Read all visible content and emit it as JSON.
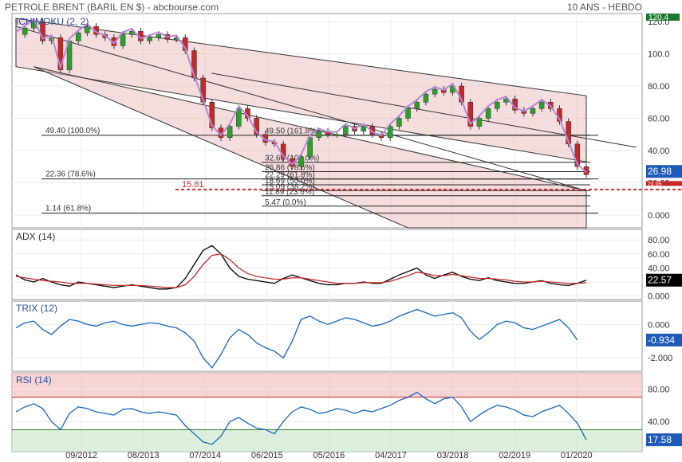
{
  "header": {
    "title": "PETROLE BRENT (BARIL EN $) - abcbourse.com",
    "period": "10 ANS - HEBDO"
  },
  "colors": {
    "price_up": "#2ca02c",
    "price_down": "#c62828",
    "ichimoku_line": "#b388d8",
    "channel_fill": "#e8b4b4",
    "adx_line": "#000000",
    "adx_signal": "#c62828",
    "trix_line": "#1565c0",
    "rsi_line": "#1565c0",
    "rsi_overbought": "#f4c2c2",
    "rsi_oversold": "#cde8cd"
  },
  "x_labels": [
    "09/2012",
    "08/2013",
    "07/2014",
    "06/2015",
    "05/2016",
    "04/2017",
    "03/2018",
    "02/2019",
    "01/2020"
  ],
  "chart_data": [
    {
      "type": "line",
      "panel": "price",
      "title": "ICHIMOKU (2, 2)",
      "ylabels": [
        "0.000",
        "20.00",
        "40.00",
        "60.00",
        "80.00",
        "100.0",
        "120.0"
      ],
      "ylim": [
        -8,
        125
      ],
      "top_value_badge": "120.4",
      "last_value": "26.98",
      "last_value_color": "#1e5bb8",
      "red_badge_value": "24.05",
      "support_label": "15.81",
      "support_value": 15.81,
      "fib_left": [
        {
          "label": "49.40  (100.0%)",
          "value": 49.4
        },
        {
          "label": "22.36  (78.6%)",
          "value": 22.36
        },
        {
          "label": "1.14  (61.8%)",
          "value": 1.14
        }
      ],
      "fib_mid": [
        {
          "label": "49.50  (161.8%)",
          "value": 49.5
        },
        {
          "label": "32.68  (100.0%)",
          "value": 32.68
        },
        {
          "label": "26.86  (78.6%)",
          "value": 26.86
        },
        {
          "label": "22.29  (61.8%)",
          "value": 22.29
        },
        {
          "label": "18.69  (50.0%)",
          "value": 18.69
        },
        {
          "label": "15.09  (38.2%)",
          "value": 15.09
        },
        {
          "label": "11.89  (23.6%)",
          "value": 11.89
        },
        {
          "label": "5.47  (0.0%)",
          "value": 5.47
        }
      ],
      "series": [
        {
          "values": [
            112,
            116,
            120,
            108,
            110,
            90,
            108,
            113,
            117,
            112,
            110,
            105,
            112,
            114,
            108,
            110,
            112,
            109,
            110,
            102,
            85,
            70,
            54,
            48,
            55,
            66,
            60,
            50,
            45,
            44,
            35,
            30,
            36,
            48,
            52,
            50,
            50,
            55,
            52,
            55,
            50,
            48,
            55,
            60,
            66,
            70,
            75,
            78,
            76,
            80,
            70,
            55,
            60,
            66,
            70,
            72,
            65,
            63,
            66,
            70,
            66,
            58,
            44,
            30,
            25
          ]
        }
      ]
    },
    {
      "type": "line",
      "panel": "adx",
      "title": "ADX (14)",
      "ylabels": [
        "0.000",
        "20.00",
        "40.00",
        "60.00",
        "80.00"
      ],
      "ylim": [
        -5,
        95
      ],
      "last_value": "22.57",
      "series": [
        {
          "values": [
            30,
            23,
            20,
            25,
            20,
            16,
            14,
            20,
            18,
            16,
            14,
            12,
            14,
            16,
            14,
            12,
            10,
            10,
            12,
            25,
            45,
            65,
            72,
            60,
            40,
            28,
            24,
            22,
            20,
            18,
            25,
            30,
            26,
            22,
            18,
            16,
            16,
            18,
            18,
            20,
            18,
            18,
            24,
            30,
            35,
            40,
            30,
            25,
            30,
            34,
            28,
            24,
            22,
            26,
            22,
            20,
            18,
            18,
            20,
            22,
            18,
            16,
            15,
            18,
            22.57
          ]
        },
        {
          "values": [
            28,
            26,
            24,
            22,
            21,
            20,
            18,
            18,
            18,
            17,
            16,
            15,
            15,
            15,
            15,
            14,
            13,
            12,
            12,
            16,
            28,
            45,
            58,
            60,
            52,
            40,
            32,
            28,
            26,
            24,
            24,
            26,
            26,
            24,
            22,
            20,
            18,
            18,
            18,
            19,
            19,
            19,
            21,
            25,
            29,
            34,
            32,
            29,
            29,
            31,
            29,
            27,
            25,
            25,
            24,
            23,
            21,
            20,
            20,
            21,
            20,
            19,
            18,
            18,
            19
          ]
        }
      ]
    },
    {
      "type": "line",
      "panel": "trix",
      "title": "TRIX (12)",
      "ylabels": [
        "-2.000",
        "0.000"
      ],
      "ylim": [
        -2.8,
        1.4
      ],
      "last_value": "-0.934",
      "series": [
        {
          "values": [
            -0.2,
            0.1,
            0.2,
            -0.3,
            -0.6,
            -0.1,
            0.3,
            0.2,
            0.0,
            -0.1,
            0.1,
            0.2,
            0.0,
            -0.1,
            0.0,
            0.1,
            0.05,
            -0.1,
            -0.2,
            -0.5,
            -1.0,
            -2.0,
            -2.6,
            -1.8,
            -0.8,
            -0.3,
            -0.6,
            -1.1,
            -1.4,
            -1.6,
            -2.0,
            -1.0,
            0.3,
            0.5,
            0.2,
            0.0,
            0.2,
            0.4,
            0.3,
            0.1,
            -0.1,
            0.0,
            0.2,
            0.5,
            0.7,
            0.9,
            0.7,
            0.5,
            0.6,
            0.7,
            0.4,
            -0.4,
            -0.9,
            -0.5,
            0.0,
            0.2,
            0.1,
            -0.2,
            -0.3,
            -0.1,
            0.1,
            0.3,
            -0.2,
            -0.934
          ]
        }
      ]
    },
    {
      "type": "line",
      "panel": "rsi",
      "title": "RSI (14)",
      "ylabels": [
        "40.00",
        "80.00"
      ],
      "ylim": [
        3,
        100
      ],
      "overbought": 70,
      "oversold": 30,
      "last_value": "17.58",
      "series": [
        {
          "values": [
            52,
            58,
            62,
            56,
            40,
            30,
            50,
            58,
            56,
            52,
            50,
            48,
            55,
            56,
            52,
            50,
            52,
            50,
            48,
            35,
            25,
            15,
            12,
            22,
            40,
            45,
            38,
            32,
            30,
            25,
            40,
            52,
            58,
            55,
            50,
            52,
            56,
            54,
            50,
            54,
            52,
            56,
            60,
            66,
            70,
            76,
            68,
            62,
            68,
            70,
            58,
            40,
            48,
            55,
            60,
            58,
            54,
            48,
            46,
            52,
            56,
            60,
            50,
            38,
            17.58
          ]
        }
      ]
    }
  ]
}
